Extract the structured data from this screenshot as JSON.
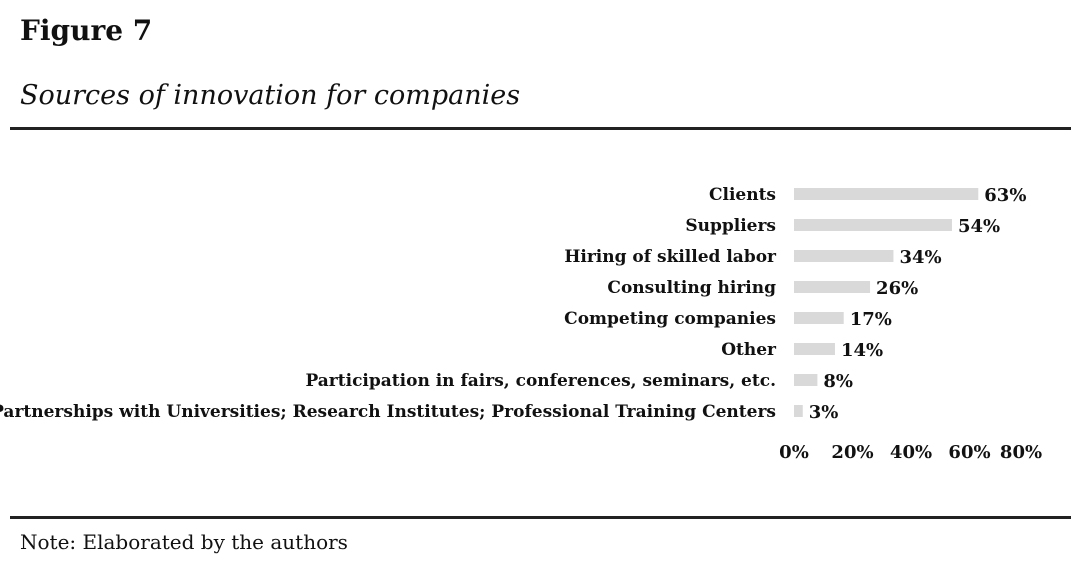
{
  "header": {
    "title": "Figure 7",
    "subtitle": "Sources of innovation for companies"
  },
  "footer": {
    "note": "Note: Elaborated by the authors"
  },
  "chart_data": {
    "type": "bar",
    "orientation": "horizontal",
    "categories": [
      "Clients",
      "Suppliers",
      "Hiring of skilled labor",
      "Consulting hiring",
      "Competing companies",
      "Other",
      "Participation in fairs, conferences, seminars, etc.",
      "Partnerships with Universities; Research Institutes; Professional Training Centers"
    ],
    "values": [
      63,
      54,
      34,
      26,
      17,
      14,
      8,
      3
    ],
    "data_labels": [
      "63%",
      "54%",
      "34%",
      "26%",
      "17%",
      "14%",
      "8%",
      "3%"
    ],
    "xlim": [
      0,
      80
    ],
    "xticks": [
      "0%",
      "20%",
      "40%",
      "60%",
      "80%"
    ],
    "grid": false,
    "bar_color": "#d9d9d9"
  }
}
